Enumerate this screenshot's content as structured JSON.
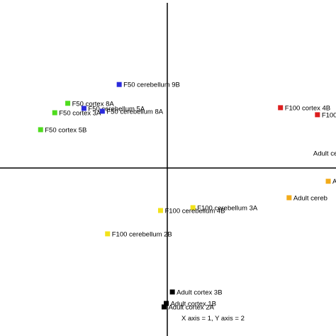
{
  "chart_data": {
    "type": "scatter",
    "xlim": [
      -1.0,
      1.0
    ],
    "ylim": [
      -1.0,
      1.0
    ],
    "grid": false,
    "axes_through_origin": true,
    "caption": "X axis = 1, Y axis = 2",
    "groups": [
      {
        "group": "F50 cerebellum",
        "color": "#2b2bdc"
      },
      {
        "group": "F50 cortex",
        "color": "#4fdc1e"
      },
      {
        "group": "F100 cortex",
        "color": "#dc1e1e"
      },
      {
        "group": "F100 cerebellum",
        "color": "#f2e21a"
      },
      {
        "group": "Adult cerebellum",
        "color": "#f2ab1a"
      },
      {
        "group": "Adult cortex",
        "color": "#000000"
      }
    ],
    "points": [
      {
        "label": "F50 cerebellum 9B",
        "x": -0.285,
        "y": 0.497,
        "color": "#2b2bdc"
      },
      {
        "label": "F50 cortex 8A",
        "x": -0.59,
        "y": 0.385,
        "color": "#4fdc1e"
      },
      {
        "label": "F50 cerebellum 5A",
        "x": -0.494,
        "y": 0.355,
        "color": "#2b2bdc"
      },
      {
        "label": "F50 cerebellum 8A",
        "x": -0.385,
        "y": 0.338,
        "color": "#2b2bdc"
      },
      {
        "label": "F50 cortex 3A",
        "x": -0.667,
        "y": 0.329,
        "color": "#4fdc1e"
      },
      {
        "label": "F50 cortex 5B",
        "x": -0.751,
        "y": 0.228,
        "color": "#4fdc1e"
      },
      {
        "label": "F100 cortex 4B",
        "x": 0.671,
        "y": 0.359,
        "color": "#dc1e1e"
      },
      {
        "label": "F100",
        "x": 0.89,
        "y": 0.317,
        "color": "#dc1e1e"
      },
      {
        "label": "Adult cere",
        "x": 0.84,
        "y": 0.089,
        "color": "#f2ab1a",
        "marker": false
      },
      {
        "label": "A",
        "x": 0.954,
        "y": -0.079,
        "color": "#f2ab1a"
      },
      {
        "label": "Adult cereb",
        "x": 0.722,
        "y": -0.177,
        "color": "#f2ab1a"
      },
      {
        "label": "F100 cerebellum 3A",
        "x": 0.152,
        "y": -0.236,
        "color": "#f2e21a"
      },
      {
        "label": "F100 cerebellum 4B",
        "x": -0.04,
        "y": -0.253,
        "color": "#f2e21a"
      },
      {
        "label": "F100 cerebellum 2B",
        "x": -0.354,
        "y": -0.392,
        "color": "#f2e21a"
      },
      {
        "label": "Adult cortex 3B",
        "x": 0.03,
        "y": -0.738,
        "color": "#000000"
      },
      {
        "label": "Adult cortex 1B",
        "x": -0.006,
        "y": -0.806,
        "color": "#000000"
      },
      {
        "label": "Adult cortex 2A",
        "x": -0.019,
        "y": -0.827,
        "color": "#000000"
      }
    ]
  }
}
